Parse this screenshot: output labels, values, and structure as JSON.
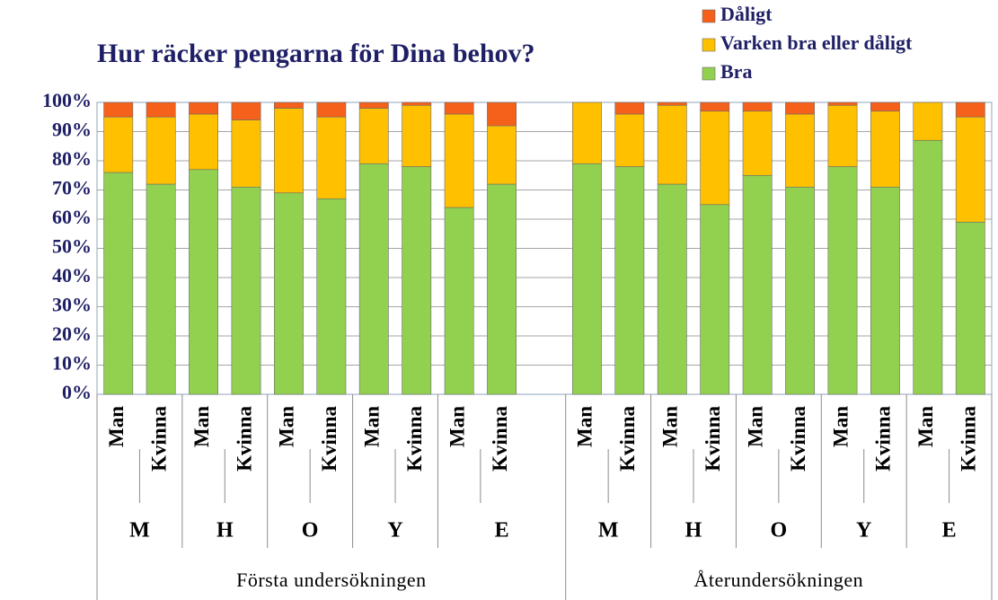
{
  "chart_data": {
    "type": "stacked_bar",
    "title": "Hur räcker pengarna för Dina behov?",
    "categories": [
      "Man",
      "Kvinna",
      "Man",
      "Kvinna",
      "Man",
      "Kvinna",
      "Man",
      "Kvinna",
      "Man",
      "Kvinna",
      null,
      "Man",
      "Kvinna",
      "Man",
      "Kvinna",
      "Man",
      "Kvinna",
      "Man",
      "Kvinna",
      "Man",
      "Kvinna"
    ],
    "category_groups": [
      [
        "M",
        "H",
        "O",
        "Y",
        "E"
      ],
      [
        "M",
        "H",
        "O",
        "Y",
        "E"
      ]
    ],
    "super_groups": [
      "Första undersökningen",
      "Återundersökningen"
    ],
    "series": [
      {
        "name": "Bra",
        "color": "#92d050",
        "values": [
          76,
          72,
          77,
          71,
          69,
          67,
          79,
          78,
          64,
          72,
          null,
          79,
          78,
          72,
          65,
          75,
          71,
          78,
          71,
          87,
          59
        ]
      },
      {
        "name": "Varken bra eller dåligt",
        "color": "#ffc000",
        "values": [
          19,
          23,
          19,
          23,
          29,
          28,
          19,
          21,
          32,
          20,
          null,
          21,
          18,
          27,
          32,
          22,
          25,
          21,
          26,
          13,
          36
        ]
      },
      {
        "name": "Dåligt",
        "color": "#f5601a",
        "values": [
          5,
          5,
          4,
          6,
          2,
          5,
          2,
          1,
          4,
          8,
          null,
          0,
          4,
          1,
          3,
          3,
          4,
          1,
          3,
          0,
          5
        ]
      }
    ],
    "ylim": [
      0,
      100
    ],
    "yticks": [
      {
        "value": 0,
        "label": "0%"
      },
      {
        "value": 10,
        "label": "10%"
      },
      {
        "value": 20,
        "label": "20%"
      },
      {
        "value": 30,
        "label": "30%"
      },
      {
        "value": 40,
        "label": "40%"
      },
      {
        "value": 50,
        "label": "50%"
      },
      {
        "value": 60,
        "label": "60%"
      },
      {
        "value": 70,
        "label": "70%"
      },
      {
        "value": 80,
        "label": "80%"
      },
      {
        "value": 90,
        "label": "90%"
      },
      {
        "value": 100,
        "label": "100%"
      }
    ],
    "grid": true,
    "legend": "top-right"
  }
}
